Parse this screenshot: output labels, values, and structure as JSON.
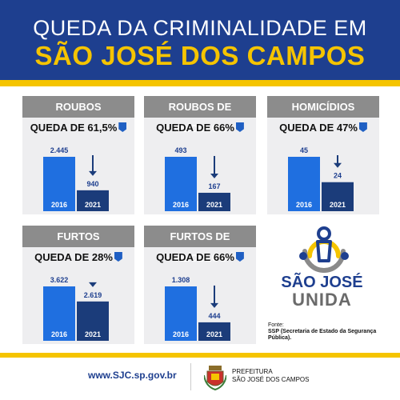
{
  "header": {
    "line1": "QUEDA DA CRIMINALIDADE EM",
    "line2": "SÃO JOSÉ DOS CAMPOS"
  },
  "colors": {
    "navy": "#1e3f8f",
    "yellow": "#f5c400",
    "bar_2016": "#1f6fe0",
    "bar_2021": "#1b3c7a",
    "card_head": "#8c8c8c",
    "card_bg": "#eeeef0"
  },
  "chart_data": [
    {
      "type": "bar",
      "title": "ROUBOS",
      "subtitle": "QUEDA DE 61,5%",
      "categories": [
        "2016",
        "2021"
      ],
      "values": [
        2445,
        940
      ],
      "value_labels": [
        "2.445",
        "940"
      ]
    },
    {
      "type": "bar",
      "title": "ROUBOS DE VEÍCULOS",
      "subtitle": "QUEDA DE 66%",
      "categories": [
        "2016",
        "2021"
      ],
      "values": [
        493,
        167
      ],
      "value_labels": [
        "493",
        "167"
      ]
    },
    {
      "type": "bar",
      "title": "HOMICÍDIOS",
      "subtitle": "QUEDA DE 47%",
      "categories": [
        "2016",
        "2021"
      ],
      "values": [
        45,
        24
      ],
      "value_labels": [
        "45",
        "24"
      ]
    },
    {
      "type": "bar",
      "title": "FURTOS",
      "subtitle": "QUEDA DE 28%",
      "categories": [
        "2016",
        "2021"
      ],
      "values": [
        3622,
        2619
      ],
      "value_labels": [
        "3.622",
        "2.619"
      ]
    },
    {
      "type": "bar",
      "title": "FURTOS DE VEÍCULOS",
      "subtitle": "QUEDA DE 66%",
      "categories": [
        "2016",
        "2021"
      ],
      "values": [
        1308,
        444
      ],
      "value_labels": [
        "1.308",
        "444"
      ]
    }
  ],
  "logo": {
    "line1": "SÃO JOSÉ",
    "line2": "UNIDA"
  },
  "source": {
    "label": "Fonte:",
    "text": "SSP (Secretaria de Estado da Segurança Pública)."
  },
  "footer": {
    "site": "www.SJC.sp.gov.br",
    "pref_line1": "PREFEITURA",
    "pref_line2": "SÃO JOSÉ DOS CAMPOS"
  }
}
